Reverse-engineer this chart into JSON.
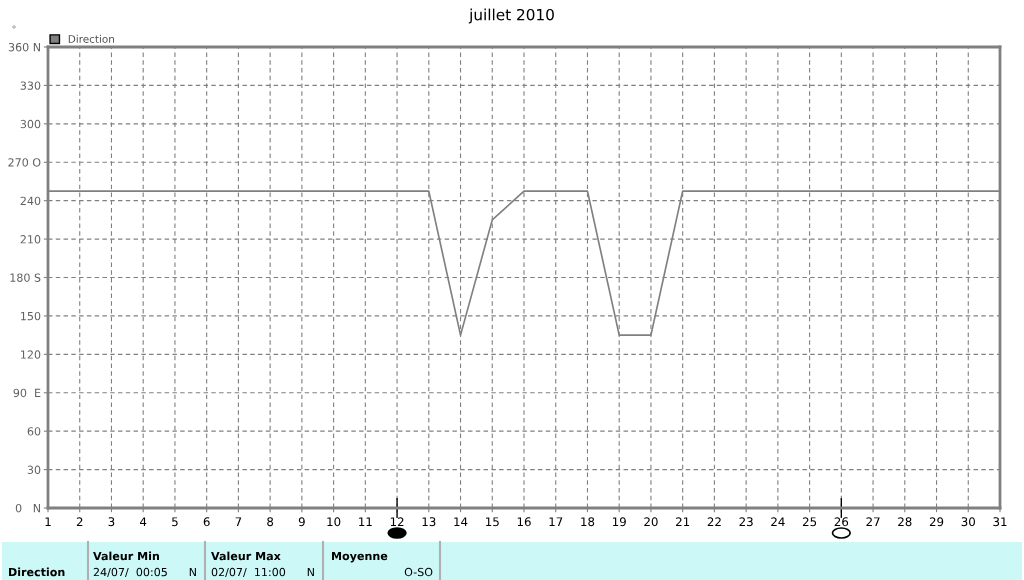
{
  "chart_data": {
    "type": "line",
    "title": "juillet 2010",
    "ylabel": "°",
    "x": [
      1,
      13,
      14,
      15,
      16,
      18,
      19,
      20,
      21,
      31
    ],
    "series": [
      {
        "name": "Direction",
        "color": "#808080",
        "values": [
          247.5,
          247.5,
          135,
          225,
          247.5,
          247.5,
          135,
          135,
          247.5,
          247.5
        ]
      }
    ],
    "xlim": [
      1,
      31
    ],
    "xticks": [
      1,
      2,
      3,
      4,
      5,
      6,
      7,
      8,
      9,
      10,
      11,
      12,
      13,
      14,
      15,
      16,
      17,
      18,
      19,
      20,
      21,
      22,
      23,
      24,
      25,
      26,
      27,
      28,
      29,
      30,
      31
    ],
    "ylim": [
      0,
      360
    ],
    "yticks": [
      {
        "value": 0,
        "label": "0   N"
      },
      30,
      60,
      {
        "value": 90,
        "label": "90  E"
      },
      120,
      150,
      {
        "value": 180,
        "label": "180 S"
      },
      210,
      240,
      {
        "value": 270,
        "label": "270 O"
      },
      300,
      330,
      {
        "value": 360,
        "label": "360 N"
      }
    ],
    "grid": true,
    "legend": "top left",
    "marker": "none",
    "line_style": "solid",
    "annotations": [
      "Direction",
      "Valeur Min",
      "24/07/  00:05",
      "N",
      "Valeur Max",
      "02/07/  11:00",
      "N",
      "Moyenne",
      "O-SO"
    ]
  }
}
